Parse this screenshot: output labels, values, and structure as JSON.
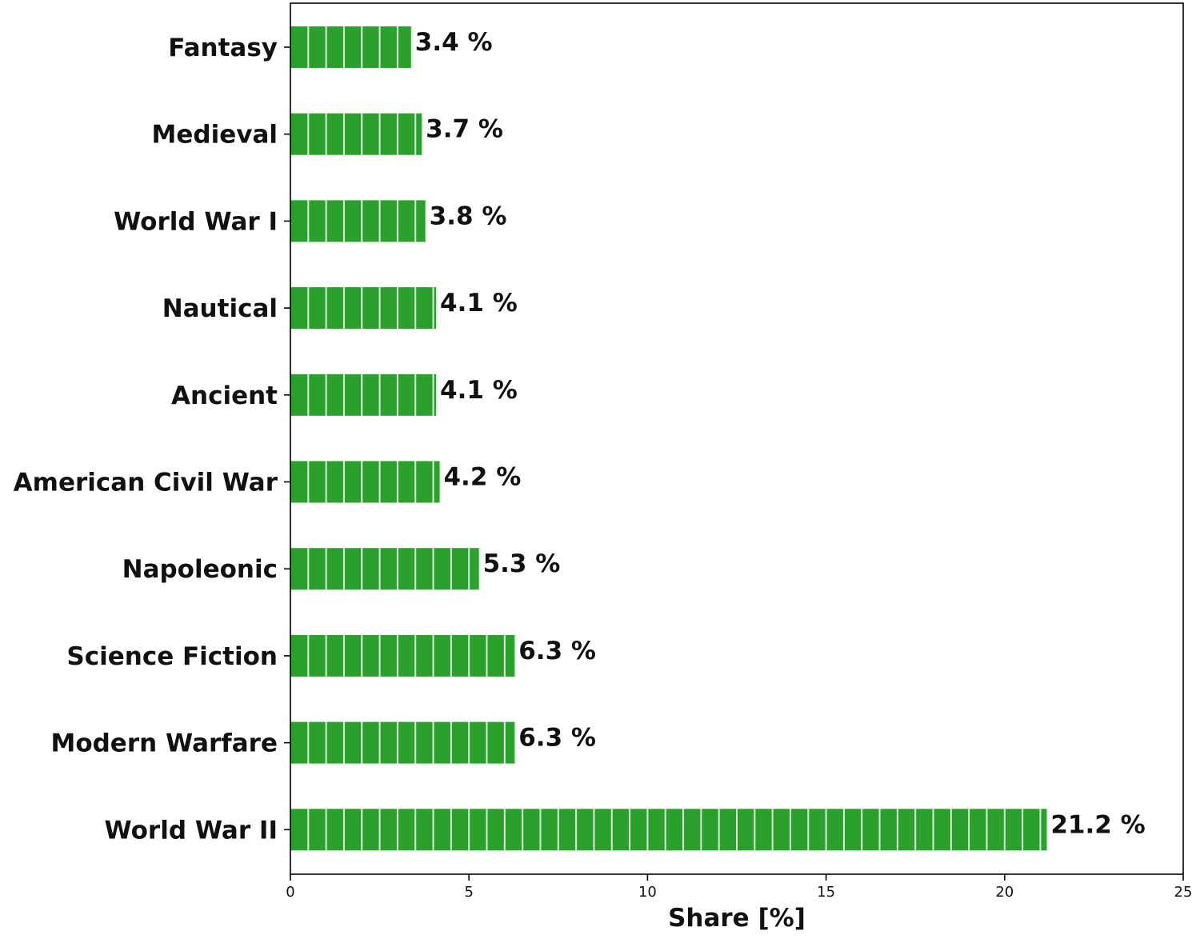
{
  "chart_data": {
    "type": "bar",
    "orientation": "horizontal",
    "categories": [
      "Fantasy",
      "Medieval",
      "World War I",
      "Nautical",
      "Ancient",
      "American Civil War",
      "Napoleonic",
      "Science Fiction",
      "Modern Warfare",
      "World War II"
    ],
    "values": [
      3.4,
      3.7,
      3.8,
      4.1,
      4.1,
      4.2,
      5.3,
      6.3,
      6.3,
      21.2
    ],
    "value_labels": [
      "3.4 %",
      "3.7 %",
      "3.8 %",
      "4.1 %",
      "4.1 %",
      "4.2 %",
      "5.3 %",
      "6.3 %",
      "6.3 %",
      "21.2 %"
    ],
    "title": "",
    "xlabel": "Share [%]",
    "ylabel": "",
    "xlim": [
      0,
      25
    ],
    "xticks": [
      0,
      5,
      10,
      15,
      20,
      25
    ],
    "xtick_labels": [
      "0",
      "5",
      "10",
      "15",
      "20",
      "25"
    ],
    "grid": false,
    "bar_color": "#2ca02c",
    "bar_segment_line_color": "#d9f2d9"
  }
}
